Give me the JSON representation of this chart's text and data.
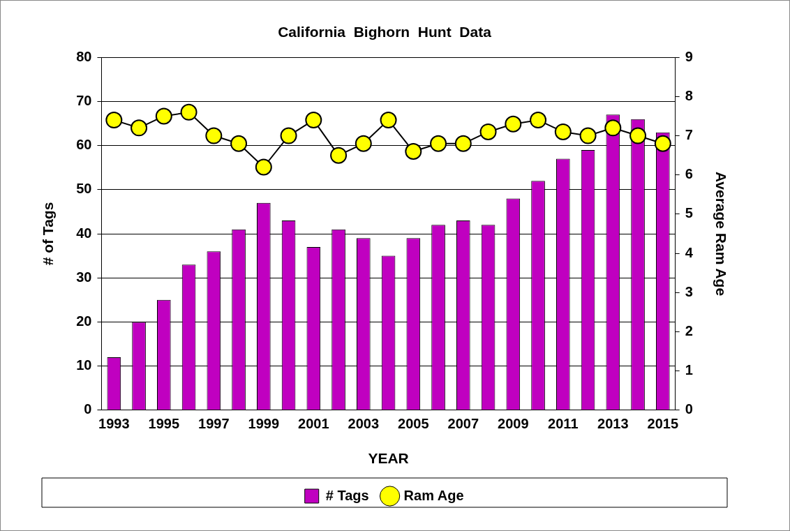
{
  "chart_data": {
    "type": "bar",
    "title": "California  Bighorn  Hunt  Data",
    "xlabel": "YEAR",
    "ylabel": "# of Tags",
    "y2label": "Average Ram Age",
    "categories": [
      "1993",
      null,
      "1995",
      null,
      "1997",
      null,
      "1999",
      null,
      "2001",
      null,
      "2003",
      null,
      "2005",
      null,
      "2007",
      null,
      "2009",
      null,
      "2011",
      null,
      "2013",
      null,
      "2015"
    ],
    "series": [
      {
        "name": "# Tags",
        "color": "#c000c0",
        "values": [
          12,
          20,
          25,
          33,
          36,
          41,
          47,
          43,
          37,
          41,
          39,
          35,
          39,
          42,
          43,
          42,
          48,
          52,
          57,
          59,
          67,
          66,
          63
        ]
      },
      {
        "name": "Ram Age",
        "type": "line",
        "axis": "y2",
        "color": "#ffff00",
        "values": [
          7.4,
          7.2,
          7.5,
          7.6,
          7.0,
          6.8,
          6.2,
          7.0,
          7.4,
          6.5,
          6.8,
          7.4,
          6.6,
          6.8,
          6.8,
          7.1,
          7.3,
          7.4,
          7.1,
          7.0,
          7.2,
          7.0,
          6.8
        ]
      }
    ],
    "ylim": [
      0,
      80
    ],
    "yticks": [
      0,
      10,
      20,
      30,
      40,
      50,
      60,
      70,
      80
    ],
    "y2lim": [
      0,
      9
    ],
    "y2ticks": [
      0,
      1,
      2,
      3,
      4,
      5,
      6,
      7,
      8,
      9
    ],
    "grid": "y",
    "legend": "bottom",
    "marker": "circle",
    "line_style": "solid"
  }
}
